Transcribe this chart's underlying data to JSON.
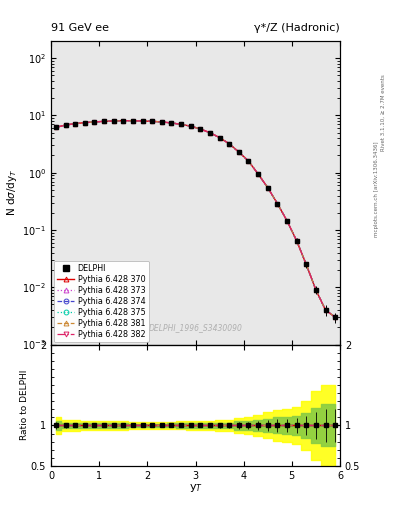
{
  "title_left": "91 GeV ee",
  "title_right": "γ*/Z (Hadronic)",
  "ylabel_main": "N dσ/dyₜ",
  "ylabel_ratio": "Ratio to DELPHI",
  "xlabel": "yₜ",
  "right_label_top": "Rivet 3.1.10, ≥ 2.7M events",
  "right_label_bot": "mcplots.cern.ch [arXiv:1306.3436]",
  "watermark": "DELPHI_1996_S3430090",
  "xlim": [
    0,
    6
  ],
  "ylim_main": [
    0.001,
    200
  ],
  "ylim_ratio": [
    0.5,
    2.0
  ],
  "x_data": [
    0.1,
    0.3,
    0.5,
    0.7,
    0.9,
    1.1,
    1.3,
    1.5,
    1.7,
    1.9,
    2.1,
    2.3,
    2.5,
    2.7,
    2.9,
    3.1,
    3.3,
    3.5,
    3.7,
    3.9,
    4.1,
    4.3,
    4.5,
    4.7,
    4.9,
    5.1,
    5.3,
    5.5,
    5.7,
    5.9
  ],
  "y_data": [
    6.2,
    6.8,
    7.2,
    7.5,
    7.7,
    7.9,
    8.0,
    8.1,
    8.1,
    8.0,
    7.9,
    7.7,
    7.4,
    7.0,
    6.5,
    5.8,
    5.0,
    4.1,
    3.2,
    2.3,
    1.6,
    0.95,
    0.55,
    0.29,
    0.145,
    0.065,
    0.025,
    0.009,
    0.004,
    0.003
  ],
  "y_err_lo": [
    0.25,
    0.18,
    0.18,
    0.18,
    0.18,
    0.18,
    0.18,
    0.18,
    0.14,
    0.14,
    0.14,
    0.14,
    0.14,
    0.14,
    0.14,
    0.14,
    0.11,
    0.11,
    0.09,
    0.09,
    0.07,
    0.05,
    0.035,
    0.022,
    0.012,
    0.006,
    0.003,
    0.0015,
    0.0008,
    0.0006
  ],
  "y_err_hi": [
    0.25,
    0.18,
    0.18,
    0.18,
    0.18,
    0.18,
    0.18,
    0.18,
    0.14,
    0.14,
    0.14,
    0.14,
    0.14,
    0.14,
    0.14,
    0.14,
    0.11,
    0.11,
    0.09,
    0.09,
    0.07,
    0.05,
    0.035,
    0.022,
    0.012,
    0.006,
    0.003,
    0.0015,
    0.0008,
    0.0006
  ],
  "mc_lines": [
    {
      "label": "Pythia 6.428 370",
      "color": "#dd0000",
      "ls": "-",
      "marker": "^",
      "lw": 1.0,
      "mfc": "none"
    },
    {
      "label": "Pythia 6.428 373",
      "color": "#cc44cc",
      "ls": ":",
      "marker": "^",
      "lw": 0.9,
      "mfc": "none"
    },
    {
      "label": "Pythia 6.428 374",
      "color": "#4444cc",
      "ls": "--",
      "marker": "o",
      "lw": 0.9,
      "mfc": "none"
    },
    {
      "label": "Pythia 6.428 375",
      "color": "#00ccaa",
      "ls": ":",
      "marker": "o",
      "lw": 0.9,
      "mfc": "none"
    },
    {
      "label": "Pythia 6.428 381",
      "color": "#cc8833",
      "ls": "--",
      "marker": "^",
      "lw": 0.9,
      "mfc": "none"
    },
    {
      "label": "Pythia 6.428 382",
      "color": "#dd2266",
      "ls": "-.",
      "marker": "v",
      "lw": 0.9,
      "mfc": "none"
    }
  ],
  "ratio_err_rel": [
    0.04,
    0.026,
    0.025,
    0.024,
    0.023,
    0.023,
    0.022,
    0.022,
    0.017,
    0.018,
    0.018,
    0.018,
    0.019,
    0.02,
    0.022,
    0.024,
    0.022,
    0.027,
    0.028,
    0.039,
    0.044,
    0.053,
    0.064,
    0.076,
    0.083,
    0.092,
    0.12,
    0.17,
    0.2,
    0.2
  ],
  "bg_color": "#e8e8e8"
}
